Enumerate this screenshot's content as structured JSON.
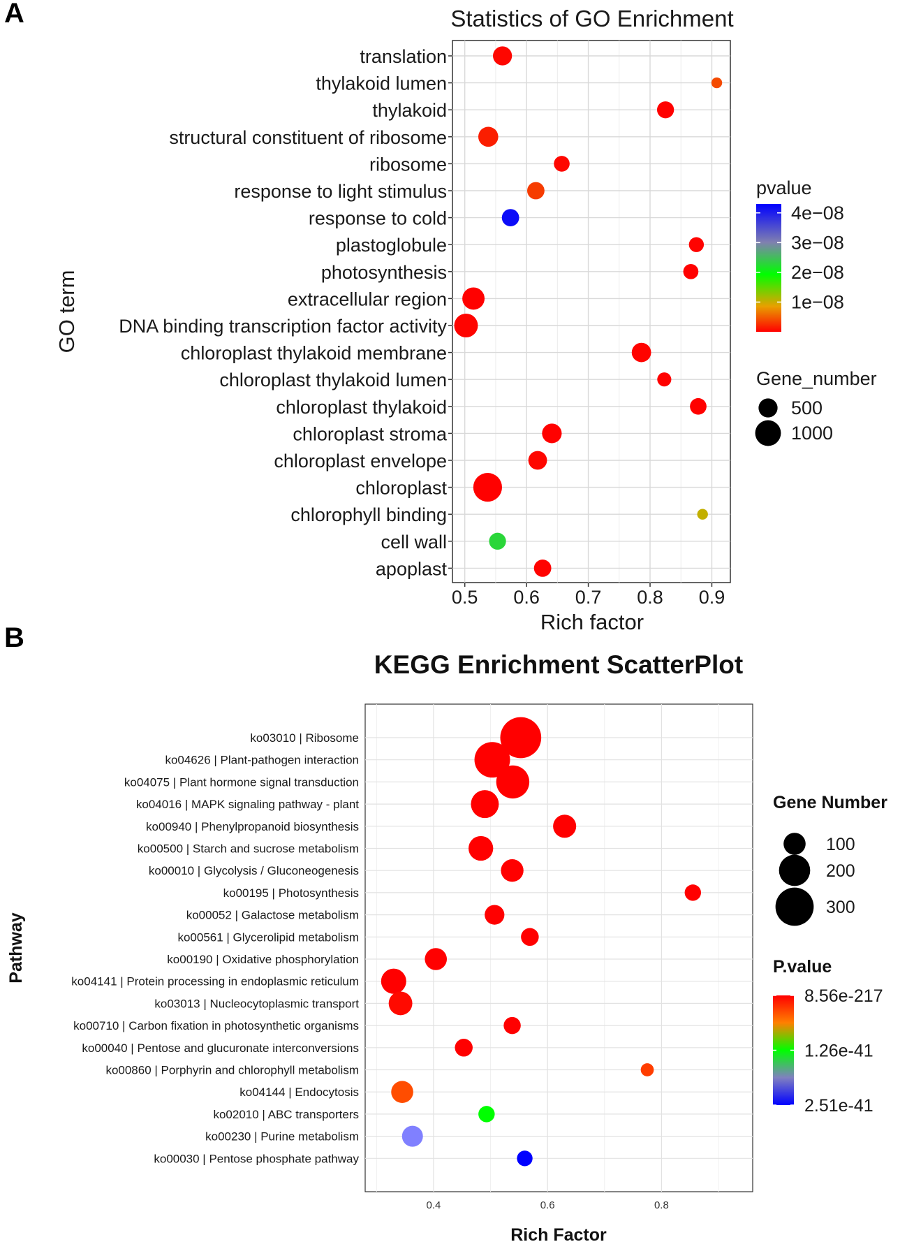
{
  "panels": {
    "a": "A",
    "b": "B"
  },
  "chart_data": [
    {
      "type": "scatter",
      "title": "Statistics of GO Enrichment",
      "xlabel": "Rich factor",
      "ylabel": "GO term",
      "xlim": [
        0.48,
        0.93
      ],
      "xticks": [
        0.5,
        0.6,
        0.7,
        0.8,
        0.9
      ],
      "xtick_labels": [
        "0.5",
        "0.6",
        "0.7",
        "0.8",
        "0.9"
      ],
      "categories": [
        "translation",
        "thylakoid lumen",
        "thylakoid",
        "structural constituent of ribosome",
        "ribosome",
        "response to light stimulus",
        "response to cold",
        "plastoglobule",
        "photosynthesis",
        "extracellular region",
        "DNA binding transcription factor activity",
        "chloroplast thylakoid membrane",
        "chloroplast thylakoid lumen",
        "chloroplast thylakoid",
        "chloroplast stroma",
        "chloroplast envelope",
        "chloroplast",
        "chlorophyll binding",
        "cell wall",
        "apoplast"
      ],
      "points": [
        {
          "term": "translation",
          "rich_factor": 0.561,
          "pvalue": 5e-10,
          "gene_number": 500
        },
        {
          "term": "thylakoid lumen",
          "rich_factor": 0.908,
          "pvalue": 5e-09,
          "gene_number": 120
        },
        {
          "term": "thylakoid",
          "rich_factor": 0.825,
          "pvalue": 1e-10,
          "gene_number": 380
        },
        {
          "term": "structural constituent of ribosome",
          "rich_factor": 0.538,
          "pvalue": 2e-09,
          "gene_number": 560
        },
        {
          "term": "ribosome",
          "rich_factor": 0.657,
          "pvalue": 5e-10,
          "gene_number": 320
        },
        {
          "term": "response to light stimulus",
          "rich_factor": 0.615,
          "pvalue": 4e-09,
          "gene_number": 400
        },
        {
          "term": "response to cold",
          "rich_factor": 0.574,
          "pvalue": 4.2e-08,
          "gene_number": 400
        },
        {
          "term": "plastoglobule",
          "rich_factor": 0.875,
          "pvalue": 2e-10,
          "gene_number": 280
        },
        {
          "term": "photosynthesis",
          "rich_factor": 0.866,
          "pvalue": 1e-10,
          "gene_number": 290
        },
        {
          "term": "extracellular region",
          "rich_factor": 0.514,
          "pvalue": 1e-10,
          "gene_number": 720
        },
        {
          "term": "DNA binding transcription factor activity",
          "rich_factor": 0.502,
          "pvalue": 3e-10,
          "gene_number": 830
        },
        {
          "term": "chloroplast thylakoid membrane",
          "rich_factor": 0.786,
          "pvalue": 2e-10,
          "gene_number": 520
        },
        {
          "term": "chloroplast thylakoid lumen",
          "rich_factor": 0.823,
          "pvalue": 1e-10,
          "gene_number": 240
        },
        {
          "term": "chloroplast thylakoid",
          "rich_factor": 0.878,
          "pvalue": 1e-10,
          "gene_number": 360
        },
        {
          "term": "chloroplast stroma",
          "rich_factor": 0.641,
          "pvalue": 1e-10,
          "gene_number": 540
        },
        {
          "term": "chloroplast envelope",
          "rich_factor": 0.618,
          "pvalue": 5e-10,
          "gene_number": 480
        },
        {
          "term": "chloroplast",
          "rich_factor": 0.537,
          "pvalue": 1e-10,
          "gene_number": 1280
        },
        {
          "term": "chlorophyll binding",
          "rich_factor": 0.885,
          "pvalue": 1.25e-08,
          "gene_number": 120
        },
        {
          "term": "cell wall",
          "rich_factor": 0.553,
          "pvalue": 2.5e-08,
          "gene_number": 380
        },
        {
          "term": "apoplast",
          "rich_factor": 0.626,
          "pvalue": 2e-10,
          "gene_number": 400
        }
      ],
      "color_scale": {
        "title": "pvalue",
        "min": 0,
        "max": 4.3e-08,
        "ticks": [
          1e-08,
          2e-08,
          3e-08,
          4e-08
        ],
        "tick_labels": [
          "1e−08",
          "2e−08",
          "3e−08",
          "4e−08"
        ],
        "stops": [
          "#ff0000",
          "#00ff00",
          "#0000ff"
        ]
      },
      "size_legend": {
        "title": "Gene_number",
        "values": [
          500,
          1000
        ],
        "labels": [
          "500",
          "1000"
        ]
      },
      "grid": true,
      "legend_position": "right"
    },
    {
      "type": "scatter",
      "title": "KEGG Enrichment ScatterPlot",
      "xlabel": "Rich Factor",
      "ylabel": "Pathway",
      "xlim": [
        0.28,
        0.96
      ],
      "xticks": [
        0.4,
        0.6,
        0.8
      ],
      "xtick_labels": [
        "0.4",
        "0.6",
        "0.8"
      ],
      "categories": [
        "ko03010 | Ribosome",
        "ko04626 | Plant-pathogen interaction",
        "ko04075 | Plant hormone signal transduction",
        "ko04016 | MAPK signaling pathway - plant",
        "ko00940 | Phenylpropanoid biosynthesis",
        "ko00500 | Starch and sucrose metabolism",
        "ko00010 | Glycolysis / Gluconeogenesis",
        "ko00195 | Photosynthesis",
        "ko00052 | Galactose metabolism",
        "ko00561 | Glycerolipid metabolism",
        "ko00190 | Oxidative phosphorylation",
        "ko04141 | Protein processing in endoplasmic reticulum",
        "ko03013 | Nucleocytoplasmic transport",
        "ko00710 | Carbon fixation in photosynthetic organisms",
        "ko00040 | Pentose and glucuronate interconversions",
        "ko00860 | Porphyrin and chlorophyll metabolism",
        "ko04144 | Endocytosis",
        "ko02010 | ABC transporters",
        "ko00230 | Purine metabolism",
        "ko00030 | Pentose phosphate pathway"
      ],
      "points": [
        {
          "pathway": "ko03010 | Ribosome",
          "rich_factor": 0.553,
          "pvalue_position": 0.0,
          "gene_number": 345
        },
        {
          "pathway": "ko04626 | Plant-pathogen interaction",
          "rich_factor": 0.503,
          "pvalue_position": 0.0,
          "gene_number": 260
        },
        {
          "pathway": "ko04075 | Plant hormone signal transduction",
          "rich_factor": 0.539,
          "pvalue_position": 0.0,
          "gene_number": 225
        },
        {
          "pathway": "ko04016 | MAPK signaling pathway - plant",
          "rich_factor": 0.49,
          "pvalue_position": 0.0,
          "gene_number": 160
        },
        {
          "pathway": "ko00940 | Phenylpropanoid biosynthesis",
          "rich_factor": 0.63,
          "pvalue_position": 0.0,
          "gene_number": 110
        },
        {
          "pathway": "ko00500 | Starch and sucrose metabolism",
          "rich_factor": 0.483,
          "pvalue_position": 0.0,
          "gene_number": 125
        },
        {
          "pathway": "ko00010 | Glycolysis / Gluconeogenesis",
          "rich_factor": 0.538,
          "pvalue_position": 0.0,
          "gene_number": 105
        },
        {
          "pathway": "ko00195 | Photosynthesis",
          "rich_factor": 0.855,
          "pvalue_position": 0.0,
          "gene_number": 55
        },
        {
          "pathway": "ko00052 | Galactose metabolism",
          "rich_factor": 0.507,
          "pvalue_position": 0.0,
          "gene_number": 80
        },
        {
          "pathway": "ko00561 | Glycerolipid metabolism",
          "rich_factor": 0.569,
          "pvalue_position": 0.0,
          "gene_number": 65
        },
        {
          "pathway": "ko00190 | Oxidative phosphorylation",
          "rich_factor": 0.404,
          "pvalue_position": 0.0,
          "gene_number": 100
        },
        {
          "pathway": "ko04141 | Protein processing in endoplasmic reticulum",
          "rich_factor": 0.33,
          "pvalue_position": 0.0,
          "gene_number": 130
        },
        {
          "pathway": "ko03013 | Nucleocytoplasmic transport",
          "rich_factor": 0.342,
          "pvalue_position": 0.02,
          "gene_number": 115
        },
        {
          "pathway": "ko00710 | Carbon fixation in photosynthetic organisms",
          "rich_factor": 0.538,
          "pvalue_position": 0.0,
          "gene_number": 60
        },
        {
          "pathway": "ko00040 | Pentose and glucuronate interconversions",
          "rich_factor": 0.453,
          "pvalue_position": 0.0,
          "gene_number": 65
        },
        {
          "pathway": "ko00860 | Porphyrin and chlorophyll metabolism",
          "rich_factor": 0.775,
          "pvalue_position": 0.12,
          "gene_number": 35
        },
        {
          "pathway": "ko04144 | Endocytosis",
          "rich_factor": 0.345,
          "pvalue_position": 0.15,
          "gene_number": 100
        },
        {
          "pathway": "ko02010 | ABC transporters",
          "rich_factor": 0.493,
          "pvalue_position": 0.5,
          "gene_number": 55
        },
        {
          "pathway": "ko00230 | Purine metabolism",
          "rich_factor": 0.363,
          "pvalue_position": 0.75,
          "gene_number": 90
        },
        {
          "pathway": "ko00030 | Pentose phosphate pathway",
          "rich_factor": 0.56,
          "pvalue_position": 1.0,
          "gene_number": 50
        }
      ],
      "color_scale": {
        "title": "P.value",
        "tick_labels": [
          "8.56e-217",
          "1.26e-41",
          "2.51e-41"
        ],
        "tick_positions": [
          0.0,
          0.5,
          1.0
        ],
        "stops": [
          "#ff0000",
          "#ff8000",
          "#00ff00",
          "#8080ff",
          "#0000ff"
        ]
      },
      "size_legend": {
        "title": "Gene Number",
        "values": [
          100,
          200,
          300
        ],
        "labels": [
          "100",
          "200",
          "300"
        ]
      },
      "grid": true,
      "legend_position": "right"
    }
  ]
}
